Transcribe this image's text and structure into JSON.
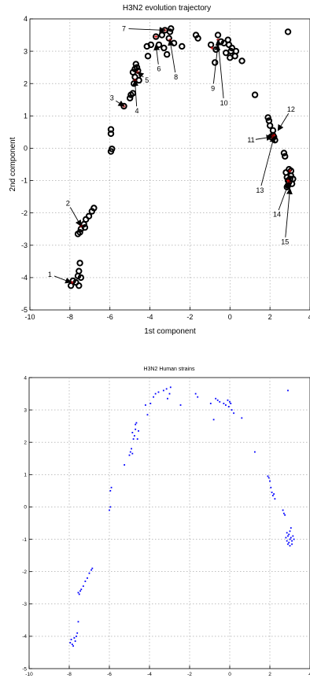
{
  "chart_data": [
    {
      "type": "scatter",
      "title": "H3N2 evolution trajectory",
      "xlabel": "1st  component",
      "ylabel": "2nd component",
      "xlim": [
        -10,
        4
      ],
      "ylim": [
        -5,
        4
      ],
      "xticks": [
        "-10",
        "-8",
        "-6",
        "-4",
        "-2",
        "0",
        "2",
        "4"
      ],
      "yticks": [
        "-5",
        "-4",
        "-3",
        "-2",
        "-1",
        "0",
        "1",
        "2",
        "3",
        "4"
      ],
      "grid": true,
      "series": [
        {
          "marker": "open-circle",
          "color": "#000000",
          "points": [
            [
              -7.95,
              -4.25
            ],
            [
              -7.85,
              -4.1
            ],
            [
              -7.7,
              -4.15
            ],
            [
              -7.6,
              -3.95
            ],
            [
              -7.55,
              -3.8
            ],
            [
              -7.45,
              -4.0
            ],
            [
              -7.5,
              -3.55
            ],
            [
              -7.55,
              -4.25
            ],
            [
              -7.6,
              -2.65
            ],
            [
              -7.5,
              -2.6
            ],
            [
              -7.45,
              -2.5
            ],
            [
              -7.3,
              -2.35
            ],
            [
              -7.2,
              -2.2
            ],
            [
              -7.05,
              -2.1
            ],
            [
              -6.9,
              -1.95
            ],
            [
              -6.8,
              -1.85
            ],
            [
              -7.25,
              -2.45
            ],
            [
              -5.95,
              -0.1
            ],
            [
              -5.9,
              -0.02
            ],
            [
              -5.95,
              0.45
            ],
            [
              -5.95,
              0.58
            ],
            [
              -5.3,
              1.3
            ],
            [
              -5.0,
              1.55
            ],
            [
              -4.95,
              1.65
            ],
            [
              -4.85,
              1.7
            ],
            [
              -4.8,
              2.0
            ],
            [
              -4.75,
              2.2
            ],
            [
              -4.75,
              2.45
            ],
            [
              -4.7,
              2.6
            ],
            [
              -4.6,
              2.4
            ],
            [
              -4.55,
              2.1
            ],
            [
              -4.85,
              2.35
            ],
            [
              -4.65,
              2.5
            ],
            [
              -4.1,
              2.85
            ],
            [
              -4.15,
              3.15
            ],
            [
              -3.95,
              3.2
            ],
            [
              -3.7,
              3.45
            ],
            [
              -3.55,
              3.2
            ],
            [
              -3.25,
              3.65
            ],
            [
              -3.0,
              3.6
            ],
            [
              -3.05,
              3.4
            ],
            [
              -2.95,
              3.7
            ],
            [
              -2.8,
              3.25
            ],
            [
              -3.3,
              3.1
            ],
            [
              -3.4,
              3.5
            ],
            [
              -3.15,
              2.9
            ],
            [
              -2.4,
              3.15
            ],
            [
              -1.7,
              3.5
            ],
            [
              -1.6,
              3.4
            ],
            [
              -0.95,
              3.2
            ],
            [
              -0.75,
              2.65
            ],
            [
              -0.7,
              3.05
            ],
            [
              -0.6,
              3.5
            ],
            [
              -0.45,
              3.3
            ],
            [
              -0.3,
              3.25
            ],
            [
              -0.1,
              3.35
            ],
            [
              -0.05,
              3.2
            ],
            [
              0.05,
              3.0
            ],
            [
              0.1,
              3.1
            ],
            [
              0.25,
              2.85
            ],
            [
              0.3,
              3.0
            ],
            [
              -0.2,
              2.95
            ],
            [
              0.6,
              2.7
            ],
            [
              0.0,
              2.8
            ],
            [
              1.25,
              1.65
            ],
            [
              1.9,
              0.95
            ],
            [
              1.95,
              0.85
            ],
            [
              2.0,
              0.7
            ],
            [
              2.15,
              0.55
            ],
            [
              2.2,
              0.35
            ],
            [
              2.25,
              0.25
            ],
            [
              2.05,
              0.35
            ],
            [
              2.15,
              0.4
            ],
            [
              2.7,
              -0.15
            ],
            [
              2.75,
              -0.25
            ],
            [
              2.8,
              -0.75
            ],
            [
              2.85,
              -0.9
            ],
            [
              2.9,
              -1.0
            ],
            [
              2.95,
              -1.05
            ],
            [
              3.0,
              -0.95
            ],
            [
              3.05,
              -0.85
            ],
            [
              2.9,
              -1.15
            ],
            [
              3.1,
              -1.1
            ],
            [
              3.15,
              -0.95
            ],
            [
              2.95,
              -0.65
            ],
            [
              2.85,
              -1.2
            ],
            [
              3.05,
              -0.7
            ],
            [
              2.9,
              3.6
            ]
          ]
        },
        {
          "marker": "red-asterisk",
          "color": "#d00000",
          "points": [
            [
              -7.9,
              -4.15
            ],
            [
              -7.45,
              -2.4
            ],
            [
              -5.3,
              1.3
            ],
            [
              -4.75,
              2.1
            ],
            [
              -4.6,
              2.35
            ],
            [
              -3.7,
              3.45
            ],
            [
              -3.25,
              3.65
            ],
            [
              -3.0,
              3.35
            ],
            [
              -0.9,
              3.1
            ],
            [
              -0.6,
              3.35
            ],
            [
              2.2,
              0.4
            ],
            [
              2.1,
              0.35
            ],
            [
              2.9,
              -1.0
            ],
            [
              3.0,
              -0.7
            ],
            [
              2.95,
              -1.05
            ]
          ]
        }
      ],
      "annotations": [
        {
          "label": "1",
          "text_at": [
            -9.0,
            -3.9
          ],
          "arrow_to": [
            -7.95,
            -4.15
          ]
        },
        {
          "label": "2",
          "text_at": [
            -8.1,
            -1.7
          ],
          "arrow_to": [
            -7.45,
            -2.4
          ]
        },
        {
          "label": "3",
          "text_at": [
            -5.9,
            1.55
          ],
          "arrow_to": [
            -5.3,
            1.3
          ]
        },
        {
          "label": "4",
          "text_at": [
            -4.65,
            1.15
          ],
          "arrow_to": [
            -4.75,
            2.1
          ]
        },
        {
          "label": "5",
          "text_at": [
            -4.15,
            2.1
          ],
          "arrow_to": [
            -4.6,
            2.35
          ]
        },
        {
          "label": "6",
          "text_at": [
            -3.55,
            2.45
          ],
          "arrow_to": [
            -3.7,
            3.2
          ]
        },
        {
          "label": "7",
          "text_at": [
            -5.3,
            3.7
          ],
          "arrow_to": [
            -3.25,
            3.65
          ]
        },
        {
          "label": "8",
          "text_at": [
            -2.7,
            2.2
          ],
          "arrow_to": [
            -3.0,
            3.35
          ]
        },
        {
          "label": "9",
          "text_at": [
            -0.85,
            1.85
          ],
          "arrow_to": [
            -0.6,
            3.2
          ]
        },
        {
          "label": "10",
          "text_at": [
            -0.3,
            1.4
          ],
          "arrow_to": [
            -0.6,
            3.35
          ]
        },
        {
          "label": "11",
          "text_at": [
            1.05,
            0.25
          ],
          "arrow_to": [
            2.1,
            0.35
          ]
        },
        {
          "label": "12",
          "text_at": [
            3.05,
            1.2
          ],
          "arrow_to": [
            2.4,
            0.55
          ]
        },
        {
          "label": "13",
          "text_at": [
            1.5,
            -1.3
          ],
          "arrow_to": [
            2.2,
            0.35
          ]
        },
        {
          "label": "14",
          "text_at": [
            2.35,
            -2.05
          ],
          "arrow_to": [
            2.95,
            -1.05
          ]
        },
        {
          "label": "15",
          "text_at": [
            2.75,
            -2.9
          ],
          "arrow_to": [
            3.0,
            -1.25
          ]
        }
      ]
    },
    {
      "type": "scatter",
      "title": "H3N2 Human strains",
      "xlabel": "",
      "ylabel": "",
      "xlim": [
        -10,
        4
      ],
      "ylim": [
        -5,
        4
      ],
      "xticks": [
        "-10",
        "-8",
        "-6",
        "-4",
        "-2",
        "0",
        "2",
        "4"
      ],
      "yticks": [
        "-5",
        "-4",
        "-3",
        "-2",
        "-1",
        "0",
        "1",
        "2",
        "3",
        "4"
      ],
      "grid": true,
      "series": [
        {
          "marker": "dot",
          "color": "#0000ff",
          "points": [
            [
              -7.95,
              -4.2
            ],
            [
              -7.9,
              -4.1
            ],
            [
              -7.85,
              -4.25
            ],
            [
              -7.75,
              -4.05
            ],
            [
              -7.7,
              -4.15
            ],
            [
              -7.6,
              -3.9
            ],
            [
              -7.55,
              -3.55
            ],
            [
              -7.65,
              -4.0
            ],
            [
              -7.8,
              -4.3
            ],
            [
              -7.55,
              -2.65
            ],
            [
              -7.45,
              -2.6
            ],
            [
              -7.4,
              -2.55
            ],
            [
              -7.3,
              -2.45
            ],
            [
              -7.2,
              -2.3
            ],
            [
              -7.1,
              -2.2
            ],
            [
              -7.0,
              -2.05
            ],
            [
              -6.9,
              -1.95
            ],
            [
              -6.85,
              -1.9
            ],
            [
              -7.5,
              -2.7
            ],
            [
              -6.0,
              -0.1
            ],
            [
              -5.95,
              0.0
            ],
            [
              -5.95,
              0.5
            ],
            [
              -5.9,
              0.6
            ],
            [
              -5.25,
              1.3
            ],
            [
              -5.0,
              1.6
            ],
            [
              -4.95,
              1.7
            ],
            [
              -4.85,
              1.65
            ],
            [
              -4.9,
              1.8
            ],
            [
              -4.8,
              2.1
            ],
            [
              -4.75,
              2.2
            ],
            [
              -4.7,
              2.4
            ],
            [
              -4.65,
              2.6
            ],
            [
              -4.55,
              2.35
            ],
            [
              -4.6,
              2.1
            ],
            [
              -4.85,
              2.3
            ],
            [
              -4.7,
              2.55
            ],
            [
              -4.2,
              3.15
            ],
            [
              -4.1,
              2.85
            ],
            [
              -3.95,
              3.2
            ],
            [
              -3.8,
              3.4
            ],
            [
              -3.7,
              3.5
            ],
            [
              -3.55,
              3.55
            ],
            [
              -3.3,
              3.6
            ],
            [
              -3.15,
              3.65
            ],
            [
              -3.0,
              3.5
            ],
            [
              -2.95,
              3.7
            ],
            [
              -3.1,
              3.35
            ],
            [
              -2.45,
              3.15
            ],
            [
              -1.7,
              3.5
            ],
            [
              -1.6,
              3.4
            ],
            [
              -0.95,
              3.2
            ],
            [
              -0.8,
              2.7
            ],
            [
              -0.7,
              3.35
            ],
            [
              -0.6,
              3.3
            ],
            [
              -0.5,
              3.25
            ],
            [
              -0.3,
              3.2
            ],
            [
              -0.1,
              3.3
            ],
            [
              -0.05,
              3.1
            ],
            [
              0.05,
              3.2
            ],
            [
              0.1,
              3.0
            ],
            [
              0.2,
              2.9
            ],
            [
              -0.2,
              3.15
            ],
            [
              0.6,
              2.75
            ],
            [
              0.0,
              3.25
            ],
            [
              1.25,
              1.7
            ],
            [
              1.9,
              0.95
            ],
            [
              1.95,
              0.9
            ],
            [
              2.0,
              0.8
            ],
            [
              2.05,
              0.6
            ],
            [
              2.1,
              0.45
            ],
            [
              2.15,
              0.35
            ],
            [
              2.2,
              0.4
            ],
            [
              2.25,
              0.25
            ],
            [
              2.65,
              -0.1
            ],
            [
              2.7,
              -0.2
            ],
            [
              2.75,
              -0.25
            ],
            [
              2.8,
              -0.95
            ],
            [
              2.85,
              -1.05
            ],
            [
              2.9,
              -0.9
            ],
            [
              2.95,
              -1.1
            ],
            [
              3.0,
              -1.0
            ],
            [
              3.05,
              -0.95
            ],
            [
              3.1,
              -1.05
            ],
            [
              3.15,
              -0.9
            ],
            [
              2.9,
              -1.15
            ],
            [
              3.0,
              -0.75
            ],
            [
              3.05,
              -0.65
            ],
            [
              2.95,
              -0.85
            ],
            [
              3.2,
              -1.0
            ],
            [
              2.85,
              -0.8
            ],
            [
              3.1,
              -1.15
            ],
            [
              3.0,
              -1.2
            ],
            [
              2.9,
              3.6
            ]
          ]
        }
      ]
    }
  ]
}
